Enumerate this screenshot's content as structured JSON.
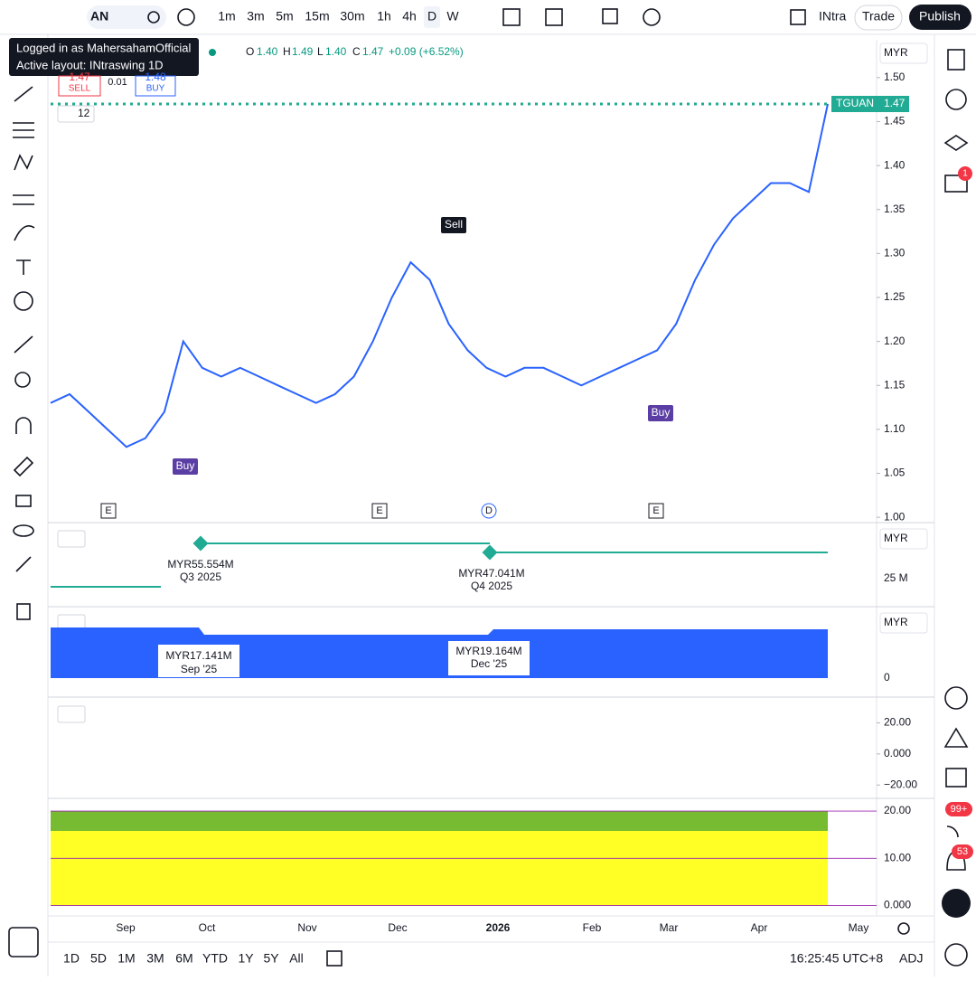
{
  "toolbar": {
    "symbol": "AN",
    "intervals": [
      "1m",
      "3m",
      "5m",
      "15m",
      "30m",
      "1h",
      "4h",
      "D",
      "W"
    ],
    "layout_name": "INtra",
    "trade": "Trade",
    "publish": "Publish"
  },
  "tooltip": {
    "line1": "Logged in as MahersahamOfficial",
    "line2": "Active layout: INtraswing 1D"
  },
  "legend": {
    "open_label": "O",
    "open": "1.40",
    "high_label": "H",
    "high": "1.49",
    "low_label": "L",
    "low": "1.40",
    "close_label": "C",
    "close": "1.47",
    "change": "+0.09 (+6.52%)"
  },
  "order": {
    "sell_price": "1.47",
    "sell": "SELL",
    "spread": "0.01",
    "buy_price": "1.48",
    "buy": "BUY"
  },
  "indicator_count": "12",
  "chart_data": {
    "type": "line",
    "currency": "MYR",
    "color": "#2962ff",
    "values": [
      1.13,
      1.14,
      1.12,
      1.1,
      1.08,
      1.09,
      1.12,
      1.2,
      1.17,
      1.16,
      1.17,
      1.16,
      1.15,
      1.14,
      1.13,
      1.14,
      1.16,
      1.2,
      1.25,
      1.29,
      1.27,
      1.22,
      1.19,
      1.17,
      1.16,
      1.17,
      1.17,
      1.16,
      1.15,
      1.16,
      1.17,
      1.18,
      1.19,
      1.22,
      1.27,
      1.31,
      1.34,
      1.36,
      1.38,
      1.38,
      1.37,
      1.47
    ],
    "ylim": [
      0.994,
      1.543
    ],
    "yticks": [
      {
        "value": 1.0,
        "label": "1.00"
      },
      {
        "value": 1.05,
        "label": "1.05"
      },
      {
        "value": 1.1,
        "label": "1.10"
      },
      {
        "value": 1.15,
        "label": "1.15"
      },
      {
        "value": 1.2,
        "label": "1.20"
      },
      {
        "value": 1.25,
        "label": "1.25"
      },
      {
        "value": 1.3,
        "label": "1.30"
      },
      {
        "value": 1.35,
        "label": "1.35"
      },
      {
        "value": 1.4,
        "label": "1.40"
      },
      {
        "value": 1.45,
        "label": "1.45"
      },
      {
        "value": 1.5,
        "label": "1.50"
      }
    ],
    "last_symbol": "TGUAN",
    "last_price": {
      "value": 1.47,
      "label": "1.47"
    },
    "signals": [
      "Sell",
      "Buy",
      "Buy"
    ],
    "events": [
      "E",
      "E",
      "D",
      "E"
    ],
    "x_labels": [
      "Sep",
      "Oct",
      "Nov",
      "Dec",
      "2026",
      "Feb",
      "Mar",
      "Apr",
      "May"
    ]
  },
  "pane2": {
    "currency": "MYR",
    "q3_value": "MYR55.554M",
    "q3_label": "Q3 2025",
    "q4_value": "MYR47.041M",
    "q4_label": "Q4 2025",
    "tick": "25 M"
  },
  "pane3": {
    "currency": "MYR",
    "sep_value": "MYR17.141M",
    "sep_label": "Sep '25",
    "dec_value": "MYR19.164M",
    "dec_label": "Dec '25",
    "tick": "0"
  },
  "pane4": {
    "ylim": [
      -28,
      36
    ],
    "yticks": [
      {
        "value": 20,
        "label": "20.00"
      },
      {
        "value": 0,
        "label": "0.000"
      },
      {
        "value": -20,
        "label": "−20.00"
      }
    ]
  },
  "pane5": {
    "ylim": [
      -2,
      22.5
    ],
    "yticks": [
      {
        "value": 20,
        "label": "20.00"
      },
      {
        "value": 10,
        "label": "10.00"
      },
      {
        "value": 0,
        "label": "0.000"
      }
    ]
  },
  "bottom": {
    "ranges": [
      "1D",
      "5D",
      "1M",
      "3M",
      "6M",
      "YTD",
      "1Y",
      "5Y",
      "All"
    ],
    "clock": "16:25:45 UTC+8",
    "adj": "ADJ"
  },
  "sidebar": {
    "chat_badge": "1",
    "feed_badge": "99+",
    "alerts_badge": "53"
  }
}
